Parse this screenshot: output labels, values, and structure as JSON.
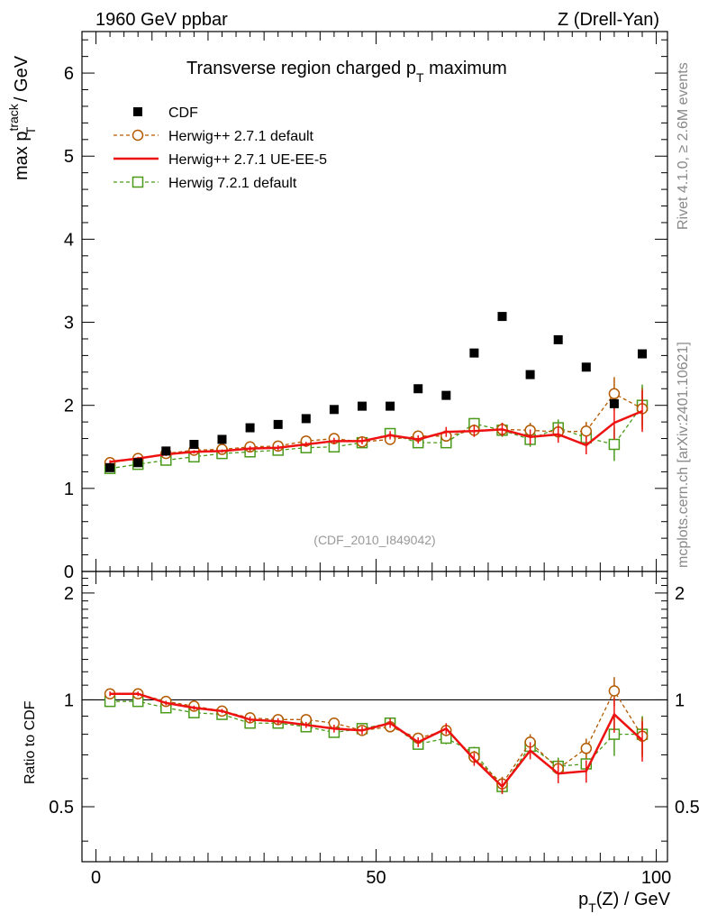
{
  "header": {
    "left": "1960 GeV ppbar",
    "right": "Z (Drell-Yan)"
  },
  "side_labels": {
    "rivet": "Rivet 4.1.0, ≥ 2.6M events",
    "mcplots": "mcplots.cern.ch [arXiv:2401.10621]"
  },
  "chart_data": {
    "type": "scatter",
    "title": "Transverse region charged p_T maximum",
    "title_main": "Transverse region charged p",
    "title_sub": "T",
    "title_tail": " maximum",
    "analysis_tag": "(CDF_2010_I849042)",
    "ylabel_main": "max p",
    "ylabel_sup": "track",
    "ylabel_sub": "T",
    "ylabel_tail": " / GeV",
    "ratio_ylabel": "Ratio to CDF",
    "xlabel_main": "p",
    "xlabel_sub": "T",
    "xlabel_tail": "(Z) / GeV",
    "xlim": [
      -2.5,
      102
    ],
    "ylim": [
      0,
      6.5
    ],
    "ratio_ylim": [
      0.35,
      2.3
    ],
    "x_ticks": [
      0,
      50,
      100
    ],
    "x_tick_labels": [
      "0",
      "50",
      "100"
    ],
    "y_ticks": [
      0,
      1,
      2,
      3,
      4,
      5,
      6
    ],
    "y_tick_labels": [
      "0",
      "1",
      "2",
      "3",
      "4",
      "5",
      "6"
    ],
    "ratio_ticks": [
      0.5,
      1,
      2
    ],
    "ratio_tick_labels": [
      "0.5",
      "1",
      "2"
    ],
    "x": [
      2.5,
      7.5,
      12.5,
      17.5,
      22.5,
      27.5,
      32.5,
      37.5,
      42.5,
      47.5,
      52.5,
      57.5,
      62.5,
      67.5,
      72.5,
      77.5,
      82.5,
      87.5,
      92.5,
      97.5
    ],
    "series": [
      {
        "name": "CDF",
        "style": "data",
        "color": "#000000",
        "values": [
          1.25,
          1.31,
          1.45,
          1.53,
          1.59,
          1.73,
          1.77,
          1.84,
          1.95,
          1.99,
          1.99,
          2.2,
          2.12,
          2.63,
          3.07,
          2.37,
          2.79,
          2.46,
          2.02,
          2.62
        ]
      },
      {
        "name": "Herwig++ 2.7.1 default",
        "style": "circle-dashed",
        "color": "#b35900",
        "values": [
          1.31,
          1.36,
          1.42,
          1.46,
          1.47,
          1.5,
          1.51,
          1.57,
          1.6,
          1.56,
          1.59,
          1.63,
          1.63,
          1.7,
          1.71,
          1.7,
          1.68,
          1.69,
          2.14,
          1.96
        ],
        "errors": [
          0.02,
          0.02,
          0.02,
          0.02,
          0.02,
          0.03,
          0.03,
          0.03,
          0.04,
          0.04,
          0.05,
          0.05,
          0.06,
          0.07,
          0.08,
          0.09,
          0.1,
          0.11,
          0.2,
          0.25
        ],
        "ratio": [
          1.04,
          1.04,
          0.99,
          0.96,
          0.93,
          0.89,
          0.88,
          0.88,
          0.86,
          0.82,
          0.84,
          0.78,
          0.82,
          0.69,
          0.58,
          0.76,
          0.64,
          0.73,
          1.06,
          0.79
        ]
      },
      {
        "name": "Herwig++ 2.7.1 UE-EE-5",
        "style": "solid",
        "color": "#ee1111",
        "values": [
          1.32,
          1.36,
          1.41,
          1.44,
          1.45,
          1.48,
          1.49,
          1.53,
          1.57,
          1.57,
          1.64,
          1.59,
          1.68,
          1.69,
          1.71,
          1.62,
          1.65,
          1.52,
          1.79,
          1.93
        ],
        "errors": [
          0.02,
          0.02,
          0.02,
          0.02,
          0.02,
          0.03,
          0.03,
          0.03,
          0.04,
          0.04,
          0.05,
          0.05,
          0.06,
          0.07,
          0.08,
          0.09,
          0.1,
          0.11,
          0.2,
          0.25
        ],
        "ratio": [
          1.04,
          1.04,
          0.98,
          0.95,
          0.93,
          0.88,
          0.87,
          0.85,
          0.83,
          0.82,
          0.86,
          0.76,
          0.83,
          0.68,
          0.57,
          0.72,
          0.62,
          0.63,
          0.91,
          0.77
        ]
      },
      {
        "name": "Herwig 7.2.1 default",
        "style": "square-dashed",
        "color": "#4a9a1a",
        "values": [
          1.24,
          1.29,
          1.34,
          1.38,
          1.42,
          1.44,
          1.46,
          1.49,
          1.5,
          1.55,
          1.66,
          1.55,
          1.55,
          1.78,
          1.7,
          1.59,
          1.73,
          1.61,
          1.53,
          2.0
        ],
        "errors": [
          0.02,
          0.02,
          0.02,
          0.02,
          0.02,
          0.03,
          0.03,
          0.03,
          0.04,
          0.04,
          0.05,
          0.05,
          0.06,
          0.07,
          0.08,
          0.09,
          0.1,
          0.11,
          0.2,
          0.25
        ],
        "ratio": [
          0.99,
          0.99,
          0.95,
          0.92,
          0.91,
          0.86,
          0.86,
          0.84,
          0.81,
          0.83,
          0.86,
          0.75,
          0.78,
          0.71,
          0.57,
          0.74,
          0.65,
          0.66,
          0.8,
          0.8
        ]
      }
    ]
  }
}
